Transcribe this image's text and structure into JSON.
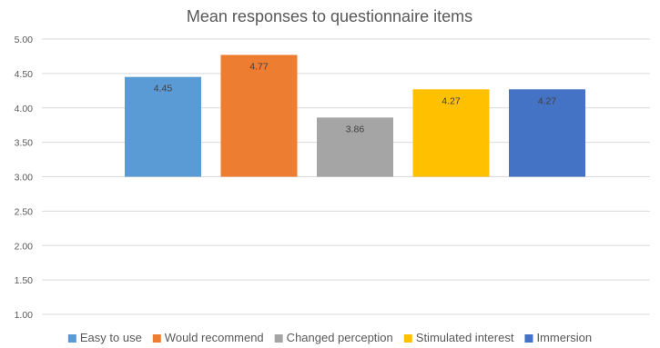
{
  "chart_data": {
    "type": "bar",
    "title": "Mean responses to questionnaire items",
    "xlabel": "",
    "ylabel": "",
    "ylim": [
      1.0,
      5.0
    ],
    "yticks": [
      "1.00",
      "1.50",
      "2.00",
      "2.50",
      "3.00",
      "3.50",
      "4.00",
      "4.50",
      "5.00"
    ],
    "bar_baseline": 3.0,
    "grid": true,
    "legend_position": "bottom",
    "series": [
      {
        "name": "Easy to use",
        "value": 4.45,
        "label": "4.45",
        "color": "#5B9BD5"
      },
      {
        "name": "Would recommend",
        "value": 4.77,
        "label": "4.77",
        "color": "#ED7D31"
      },
      {
        "name": "Changed perception",
        "value": 3.86,
        "label": "3.86",
        "color": "#A5A5A5"
      },
      {
        "name": "Stimulated interest",
        "value": 4.27,
        "label": "4.27",
        "color": "#FFC000"
      },
      {
        "name": "Immersion",
        "value": 4.27,
        "label": "4.27",
        "color": "#4472C4"
      }
    ]
  }
}
